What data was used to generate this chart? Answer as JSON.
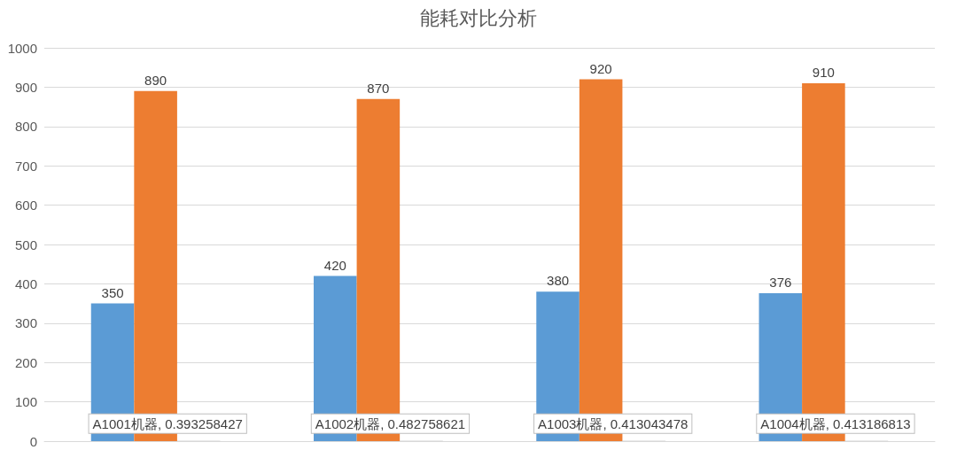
{
  "chart_data": {
    "type": "bar",
    "title": "能耗对比分析",
    "categories": [
      null,
      null,
      null,
      null
    ],
    "series": [
      {
        "color": "#5b9bd5",
        "values": [
          350,
          420,
          380,
          376
        ],
        "value_labels": [
          "350",
          "420",
          "380",
          "376"
        ]
      },
      {
        "color": "#ed7d31",
        "values": [
          890,
          870,
          920,
          910
        ],
        "value_labels": [
          "890",
          "870",
          "920",
          "910"
        ]
      },
      {
        "color": "#a5a5a5",
        "values": [
          0.393258427,
          0.482758621,
          0.413043478,
          0.413186813
        ],
        "value_labels": [
          "A1001机器, 0.393258427",
          "A1002机器, 0.482758621",
          "A1003机器, 0.413043478",
          "A1004机器, 0.413186813"
        ]
      }
    ],
    "ylim": [
      0,
      1000
    ],
    "yticks": [
      0,
      100,
      200,
      300,
      400,
      500,
      600,
      700,
      800,
      900,
      1000
    ],
    "grid": "y",
    "tick_labels": "y"
  }
}
